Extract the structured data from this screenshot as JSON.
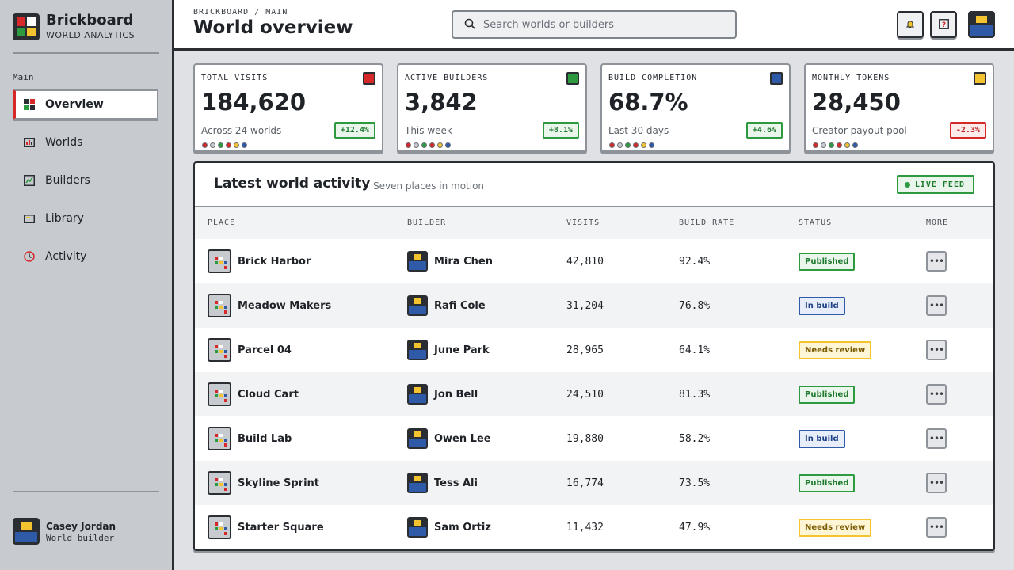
{
  "brand": {
    "title": "Brickboard",
    "subtitle": "WORLD ANALYTICS"
  },
  "sidebar": {
    "section_label": "Main",
    "items": [
      {
        "label": "Overview",
        "icon": "grid-icon",
        "active": true
      },
      {
        "label": "Worlds",
        "icon": "chart-icon"
      },
      {
        "label": "Builders",
        "icon": "builder-icon"
      },
      {
        "label": "Library",
        "icon": "folder-icon"
      },
      {
        "label": "Activity",
        "icon": "clock-icon"
      }
    ],
    "user": {
      "name": "Casey Jordan",
      "role": "World builder"
    }
  },
  "header": {
    "breadcrumb": "BRICKBOARD / MAIN",
    "title": "World overview",
    "search_placeholder": "Search worlds or builders",
    "notifications_icon": "bell-icon",
    "help_icon": "help-icon"
  },
  "stats": [
    {
      "label": "TOTAL VISITS",
      "value": "184,620",
      "caption": "Across 24 worlds",
      "delta": "+12.4%",
      "trend": "up",
      "color": "#d62828"
    },
    {
      "label": "ACTIVE BUILDERS",
      "value": "3,842",
      "caption": "This week",
      "delta": "+8.1%",
      "trend": "up",
      "color": "#2e9a40"
    },
    {
      "label": "BUILD COMPLETION",
      "value": "68.7%",
      "caption": "Last 30 days",
      "delta": "+4.6%",
      "trend": "up",
      "color": "#2f5aa8"
    },
    {
      "label": "MONTHLY TOKENS",
      "value": "28,450",
      "caption": "Creator payout pool",
      "delta": "-2.3%",
      "trend": "down",
      "color": "#f4c430"
    }
  ],
  "activity": {
    "title": "Latest world activity",
    "subtitle": "Seven places in motion",
    "live_label": "LIVE FEED",
    "columns": [
      "PLACE",
      "BUILDER",
      "VISITS",
      "BUILD RATE",
      "STATUS",
      "MORE"
    ],
    "rows": [
      {
        "place": "Brick Harbor",
        "builder": "Mira Chen",
        "visits": "42,810",
        "rate": "92.4%",
        "status": "Published"
      },
      {
        "place": "Meadow Makers",
        "builder": "Rafi Cole",
        "visits": "31,204",
        "rate": "76.8%",
        "status": "In build"
      },
      {
        "place": "Parcel 04",
        "builder": "June Park",
        "visits": "28,965",
        "rate": "64.1%",
        "status": "Needs review"
      },
      {
        "place": "Cloud Cart",
        "builder": "Jon Bell",
        "visits": "24,510",
        "rate": "81.3%",
        "status": "Published"
      },
      {
        "place": "Build Lab",
        "builder": "Owen Lee",
        "visits": "19,880",
        "rate": "58.2%",
        "status": "In build"
      },
      {
        "place": "Skyline Sprint",
        "builder": "Tess Ali",
        "visits": "16,774",
        "rate": "73.5%",
        "status": "Published"
      },
      {
        "place": "Starter Square",
        "builder": "Sam Ortiz",
        "visits": "11,432",
        "rate": "47.9%",
        "status": "Needs review"
      }
    ]
  },
  "colors": {
    "red": "#d62828",
    "green": "#2e9a40",
    "blue": "#2f5aa8",
    "yellow": "#f4c430",
    "dark": "#2a2e33"
  }
}
